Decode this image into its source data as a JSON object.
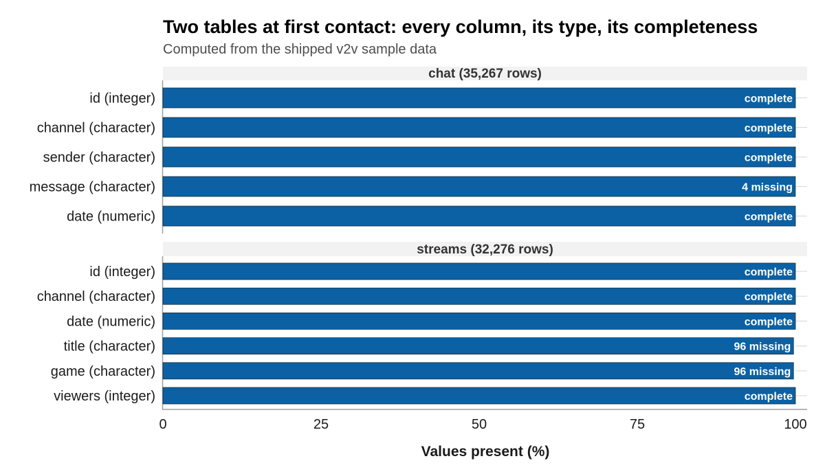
{
  "chart_data": {
    "type": "bar",
    "orientation": "horizontal",
    "title": "Two tables at first contact: every column, its type, its completeness",
    "subtitle": "Computed from the shipped v2v sample data",
    "xlabel": "Values present (%)",
    "ylabel": "",
    "xlim": [
      0,
      100
    ],
    "x_ticks": [
      0,
      25,
      50,
      75,
      100
    ],
    "grid": false,
    "legend": "none",
    "bar_color": "#0b61a4",
    "panels": [
      {
        "name": "chat (35,267 rows)",
        "categories": [
          "id  (integer)",
          "channel  (character)",
          "sender  (character)",
          "message  (character)",
          "date  (numeric)"
        ],
        "values": [
          100,
          100,
          100,
          99.99,
          100
        ],
        "labels": [
          "complete",
          "complete",
          "complete",
          "4 missing",
          "complete"
        ]
      },
      {
        "name": "streams (32,276 rows)",
        "categories": [
          "id  (integer)",
          "channel  (character)",
          "date  (numeric)",
          "title  (character)",
          "game  (character)",
          "viewers  (integer)"
        ],
        "values": [
          100,
          100,
          100,
          99.7,
          99.7,
          100
        ],
        "labels": [
          "complete",
          "complete",
          "complete",
          "96 missing",
          "96 missing",
          "complete"
        ]
      }
    ]
  }
}
